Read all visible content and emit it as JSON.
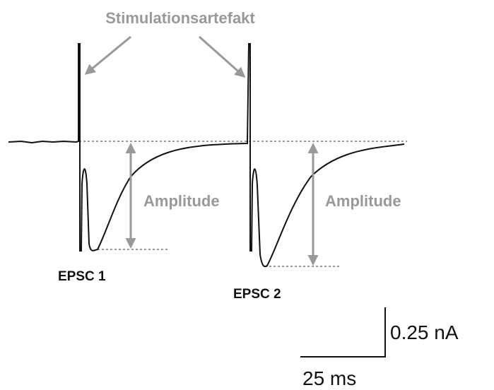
{
  "labels": {
    "artifact": "Stimulationsartefakt",
    "amplitude_1": "Amplitude",
    "amplitude_2": "Amplitude",
    "epsc_1": "EPSC 1",
    "epsc_2": "EPSC 2"
  },
  "scale_bar": {
    "current": "0.25 nA",
    "time": "25 ms"
  }
}
